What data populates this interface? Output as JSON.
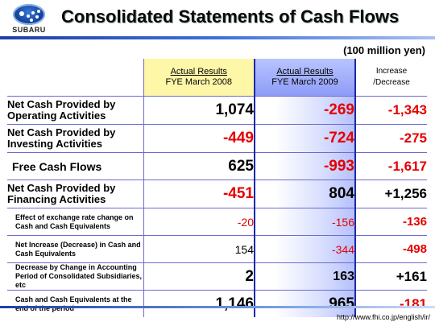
{
  "brand": {
    "wordmark": "SUBARU"
  },
  "page_title": "Consolidated Statements of Cash Flows",
  "unit": "(100 million yen)",
  "columns": {
    "fy2008": {
      "line1": "Actual Results",
      "line2": "FYE March 2008"
    },
    "fy2009": {
      "line1": "Actual Results",
      "line2": "FYE March 2009"
    },
    "change": {
      "line1": "Increase",
      "line2": "/Decrease"
    }
  },
  "rows": [
    {
      "label": "Net Cash Provided by Operating Activities",
      "fy2008": "1,074",
      "fy2009": "-269",
      "change": "-1,343"
    },
    {
      "label": "Net Cash Provided by Investing Activities",
      "fy2008": "-449",
      "fy2009": "-724",
      "change": "-275"
    },
    {
      "label": "Free Cash Flows",
      "fy2008": "625",
      "fy2009": "-993",
      "change": "-1,617"
    },
    {
      "label": "Net Cash Provided by Financing Activities",
      "fy2008": "-451",
      "fy2009": "804",
      "change": "+1,256"
    },
    {
      "label": "Effect of exchange rate change on Cash and Cash Equivalents",
      "fy2008": "-20",
      "fy2009": "-156",
      "change": "-136"
    },
    {
      "label": "Net Increase (Decrease) in Cash and Cash Equivalents",
      "fy2008": "154",
      "fy2009": "-344",
      "change": "-498"
    },
    {
      "label": "Decrease by Change in Accounting Period of Consolidated Subsidiaries, etc",
      "fy2008": "2",
      "fy2009": "163",
      "change": "+161"
    },
    {
      "label": "Cash and Cash Equivalents at the end of the period",
      "fy2008": "1,146",
      "fy2009": "965",
      "change": "-181"
    }
  ],
  "footer_url": "http://www.fhi.co.jp/english/ir/",
  "colors": {
    "negative": "#e60000",
    "accent": "#1a2aa8",
    "highlight_2008": "#fff7a8"
  }
}
